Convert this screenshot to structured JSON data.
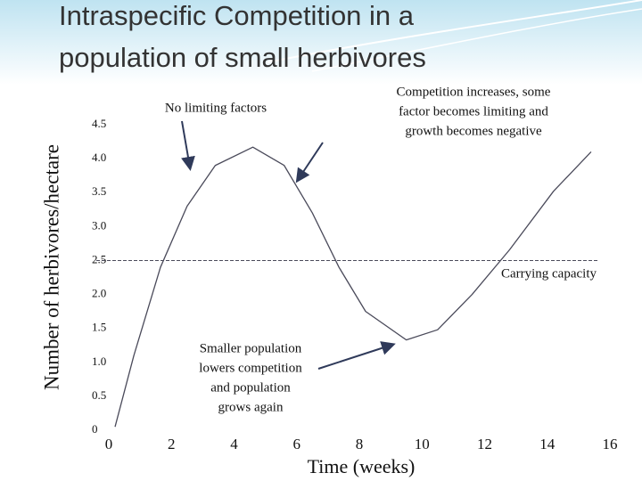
{
  "chart_data": {
    "type": "line",
    "title": [
      "Intraspecific Competition in a",
      "population of small herbivores"
    ],
    "x_label": "Time (weeks)",
    "y_label": "Number of herbivores/hectare",
    "xlim": [
      0,
      16
    ],
    "ylim": [
      0,
      4.5
    ],
    "xticks": [
      0,
      2,
      4,
      6,
      8,
      10,
      12,
      14,
      16
    ],
    "yticks": [
      0,
      0.5,
      {
        "value": 1,
        "label": "1.0"
      },
      1.5,
      {
        "value": 2,
        "label": "2.0"
      },
      2.5,
      {
        "value": 3,
        "label": "3.0"
      },
      3.5,
      {
        "value": 4,
        "label": "4.0"
      },
      4.5
    ],
    "grid": false,
    "series": [
      {
        "color": "#4a4a5a",
        "x": [
          0.2,
          0.8,
          1.65,
          2.5,
          3.4,
          4.6,
          5.6,
          6.5,
          7.35,
          8.2,
          9.5,
          10.5,
          11.6,
          12.8,
          14.2,
          15.4
        ],
        "values": [
          0.05,
          1.1,
          2.4,
          3.3,
          3.9,
          4.17,
          3.9,
          3.2,
          2.4,
          1.75,
          1.33,
          1.48,
          2.0,
          2.66,
          3.52,
          4.1
        ]
      }
    ],
    "reference_line": {
      "value": 2.5,
      "label": "Carrying capacity",
      "color": "#4a4a5a"
    },
    "annotations": [
      {
        "lines": [
          "No limiting factors"
        ]
      },
      {
        "lines": [
          "Competition increases, some",
          "factor becomes limiting and",
          "growth becomes negative"
        ]
      },
      {
        "lines": [
          "Smaller population",
          "lowers competition",
          "and population",
          "grows again"
        ]
      }
    ]
  }
}
